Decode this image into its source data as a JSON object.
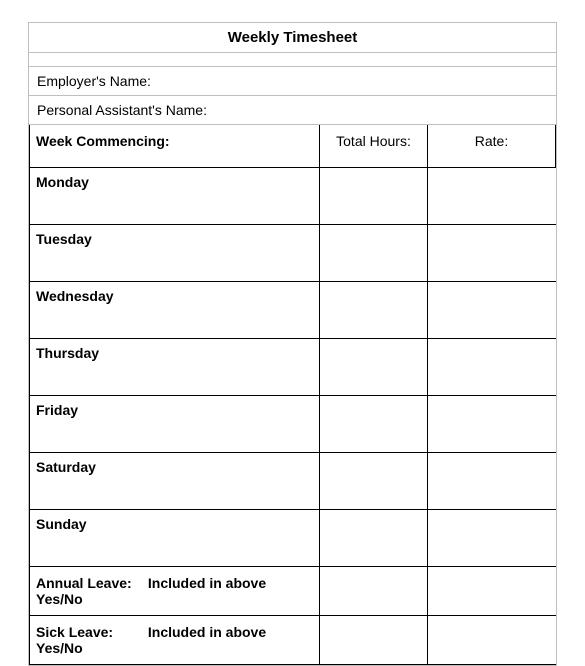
{
  "title": "Weekly Timesheet",
  "employer_label": "Employer's Name:",
  "assistant_label": "Personal Assistant's Name:",
  "header": {
    "week_label": "Week Commencing:",
    "hours_label": "Total Hours:",
    "rate_label": "Rate:"
  },
  "days": [
    {
      "name": "Monday",
      "hours": "",
      "rate": ""
    },
    {
      "name": "Tuesday",
      "hours": "",
      "rate": ""
    },
    {
      "name": "Wednesday",
      "hours": "",
      "rate": ""
    },
    {
      "name": "Thursday",
      "hours": "",
      "rate": ""
    },
    {
      "name": "Friday",
      "hours": "",
      "rate": ""
    },
    {
      "name": "Saturday",
      "hours": "",
      "rate": ""
    },
    {
      "name": "Sunday",
      "hours": "",
      "rate": ""
    }
  ],
  "annual_leave": {
    "label": "Annual Leave:",
    "text": "Included in above Yes/No",
    "hours": "",
    "rate": ""
  },
  "sick_leave": {
    "label": "Sick Leave:",
    "text": "Included in above Yes/No",
    "hours": "",
    "rate": ""
  },
  "style": {
    "outer_border_color": "#bfbfbf",
    "grid_border_color": "#000000",
    "background_color": "#ffffff",
    "title_fontsize": 15,
    "label_fontsize": 14,
    "day_row_height": 56,
    "col_widths": {
      "main": 290,
      "hours": 108
    }
  }
}
